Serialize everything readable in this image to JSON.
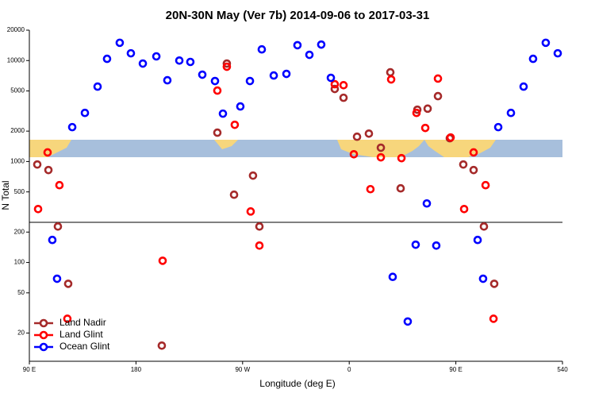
{
  "chart_data": {
    "type": "scatter",
    "title": "20N-30N May (Ver 7b)   2014-09-06 to 2017-03-31",
    "x_label": "Longitude (deg E)",
    "y_label": "N Total",
    "log_y": true,
    "xlim": [
      90,
      540
    ],
    "xticks": [
      {
        "value": 90,
        "label": "90 E"
      },
      180,
      {
        "value": 270,
        "label": "90 W"
      },
      {
        "value": 360,
        "label": "0"
      },
      {
        "value": 450,
        "label": "90 E"
      },
      540
    ],
    "ylim": [
      10.5,
      20000
    ],
    "yticks": [
      20,
      50,
      100,
      200,
      500,
      1000,
      2000,
      5000,
      10000,
      20000
    ],
    "reference_line": 250,
    "legend": "bottom-left",
    "series": [
      {
        "name": "Land Nadir",
        "color": "#a52a2a",
        "x": [
          96.7,
          106.1,
          114.1,
          122.8,
          201.8,
          248.7,
          256.7,
          262.8,
          278.8,
          284.2,
          347.8,
          355.2,
          366.6,
          376.6,
          386.7,
          394.7,
          403.4,
          417.5,
          426.2,
          434.9,
          444.9,
          456.3,
          465.0,
          473.7,
          482.4
        ],
        "values": [
          934,
          823,
          227,
          61.5,
          15,
          1930,
          9340,
          469,
          725,
          227,
          5230,
          4280,
          1760,
          1890,
          1370,
          7650,
          542,
          3260,
          3340,
          4440,
          1700,
          934,
          823,
          227,
          61.5
        ]
      },
      {
        "name": "Land Glint",
        "color": "#ff0000",
        "x": [
          97.4,
          105.4,
          115.4,
          122.1,
          202.5,
          248.7,
          256.7,
          263.4,
          276.8,
          284.2,
          347.8,
          355.2,
          363.9,
          377.9,
          386.7,
          395.4,
          404.1,
          416.8,
          424.2,
          434.9,
          445.6,
          457.0,
          465.0,
          475.1,
          481.8
        ],
        "values": [
          338,
          1230,
          583,
          27.7,
          104,
          5040,
          8690,
          2310,
          320,
          147,
          5830,
          5700,
          1180,
          532,
          1100,
          6500,
          1080,
          3030,
          2150,
          6630,
          1730,
          338,
          1230,
          583,
          27.7
        ]
      },
      {
        "name": "Ocean Glint",
        "color": "#0000ff",
        "x": [
          109.4,
          113.4,
          126.2,
          136.9,
          147.6,
          155.6,
          166.3,
          175.7,
          185.8,
          197.2,
          206.5,
          216.6,
          225.9,
          236.0,
          246.7,
          253.4,
          268.1,
          276.2,
          286.2,
          296.3,
          307.0,
          316.3,
          326.4,
          336.4,
          344.5,
          396.7,
          409.4,
          416.1,
          425.5,
          433.5,
          468.4,
          473.0,
          485.8,
          496.5,
          507.2,
          515.2,
          525.9,
          536.0
        ],
        "values": [
          167,
          69,
          2190,
          3030,
          5520,
          10400,
          15000,
          11800,
          9340,
          11000,
          6380,
          10000,
          9690,
          7250,
          6270,
          2980,
          3510,
          6270,
          12900,
          7110,
          7380,
          14200,
          11400,
          14400,
          6740,
          72,
          26,
          150,
          384,
          147,
          167,
          69,
          2190,
          3030,
          5520,
          10400,
          15000,
          11800
        ]
      }
    ]
  }
}
